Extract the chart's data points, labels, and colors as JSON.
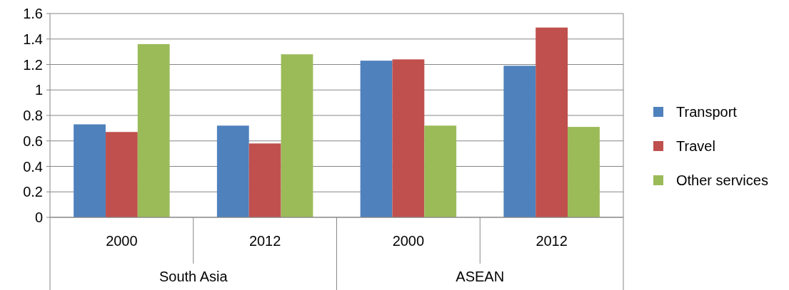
{
  "chart_data": {
    "type": "bar",
    "categories": [
      "2000",
      "2012",
      "2000",
      "2012"
    ],
    "annotations": [
      "South Asia",
      "ASEAN"
    ],
    "series": [
      {
        "name": "Transport",
        "color": "#4f81bd",
        "values": [
          0.73,
          0.72,
          1.23,
          1.19
        ]
      },
      {
        "name": "Travel",
        "color": "#c0504d",
        "values": [
          0.67,
          0.58,
          1.24,
          1.49
        ]
      },
      {
        "name": "Other services",
        "color": "#9bbb59",
        "values": [
          1.36,
          1.28,
          0.72,
          0.71
        ]
      }
    ],
    "ylim": [
      0,
      1.6
    ],
    "yticks": [
      0,
      0.2,
      0.4,
      0.6,
      0.8,
      {
        "value": 1,
        "label": "1"
      },
      1.2,
      1.4,
      1.6
    ],
    "grid": "y",
    "legend": "right"
  }
}
